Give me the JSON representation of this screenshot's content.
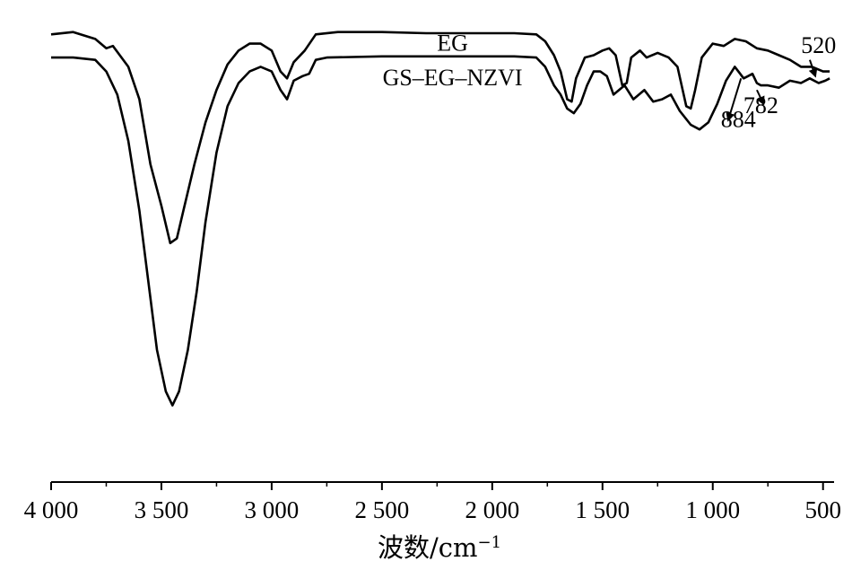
{
  "chart_data": {
    "type": "line",
    "title": "",
    "xlabel": "波数/cm",
    "xlabel_superscript": "−1",
    "ylabel": "",
    "xlim": [
      4000,
      450
    ],
    "x_reversed": true,
    "grid": false,
    "xticks": [
      {
        "value": 4000,
        "label": "4 000"
      },
      {
        "value": 3500,
        "label": "3 500"
      },
      {
        "value": 3000,
        "label": "3 000"
      },
      {
        "value": 2500,
        "label": "2 500"
      },
      {
        "value": 2000,
        "label": "2 000"
      },
      {
        "value": 1500,
        "label": "1 500"
      },
      {
        "value": 1000,
        "label": "1 000"
      },
      {
        "value": 500,
        "label": "500"
      }
    ],
    "series": [
      {
        "name": "EG",
        "color": "#000000",
        "points": [
          [
            4000,
            96
          ],
          [
            3900,
            97
          ],
          [
            3800,
            94
          ],
          [
            3750,
            90
          ],
          [
            3720,
            91
          ],
          [
            3650,
            82
          ],
          [
            3600,
            68
          ],
          [
            3550,
            40
          ],
          [
            3500,
            22
          ],
          [
            3460,
            6
          ],
          [
            3430,
            8
          ],
          [
            3400,
            20
          ],
          [
            3350,
            40
          ],
          [
            3300,
            58
          ],
          [
            3250,
            72
          ],
          [
            3200,
            83
          ],
          [
            3150,
            89
          ],
          [
            3100,
            92
          ],
          [
            3050,
            92
          ],
          [
            3000,
            89
          ],
          [
            2960,
            80
          ],
          [
            2930,
            77
          ],
          [
            2900,
            84
          ],
          [
            2850,
            89
          ],
          [
            2800,
            96
          ],
          [
            2700,
            97
          ],
          [
            2500,
            97
          ],
          [
            2300,
            96.5
          ],
          [
            2100,
            96.5
          ],
          [
            1900,
            96.5
          ],
          [
            1800,
            96
          ],
          [
            1760,
            93
          ],
          [
            1720,
            87
          ],
          [
            1690,
            80
          ],
          [
            1660,
            68
          ],
          [
            1640,
            67
          ],
          [
            1620,
            77
          ],
          [
            1580,
            86
          ],
          [
            1540,
            87
          ],
          [
            1500,
            89
          ],
          [
            1470,
            90
          ],
          [
            1440,
            87
          ],
          [
            1410,
            74
          ],
          [
            1390,
            75
          ],
          [
            1370,
            86
          ],
          [
            1330,
            89
          ],
          [
            1300,
            86
          ],
          [
            1250,
            88
          ],
          [
            1200,
            86
          ],
          [
            1160,
            82
          ],
          [
            1120,
            65
          ],
          [
            1100,
            64
          ],
          [
            1080,
            72
          ],
          [
            1050,
            86
          ],
          [
            1000,
            92
          ],
          [
            950,
            91
          ],
          [
            900,
            94
          ],
          [
            850,
            93
          ],
          [
            800,
            90
          ],
          [
            750,
            89
          ],
          [
            700,
            87
          ],
          [
            650,
            85
          ],
          [
            600,
            82
          ],
          [
            550,
            82
          ],
          [
            500,
            80
          ],
          [
            470,
            80
          ]
        ]
      },
      {
        "name": "GS–EG–NZVI",
        "color": "#000000",
        "points": [
          [
            4000,
            86
          ],
          [
            3900,
            86
          ],
          [
            3800,
            85
          ],
          [
            3750,
            80
          ],
          [
            3700,
            70
          ],
          [
            3650,
            50
          ],
          [
            3600,
            20
          ],
          [
            3560,
            -10
          ],
          [
            3520,
            -40
          ],
          [
            3480,
            -58
          ],
          [
            3450,
            -64
          ],
          [
            3420,
            -58
          ],
          [
            3380,
            -40
          ],
          [
            3340,
            -15
          ],
          [
            3300,
            15
          ],
          [
            3250,
            45
          ],
          [
            3200,
            65
          ],
          [
            3150,
            75
          ],
          [
            3100,
            80
          ],
          [
            3050,
            82
          ],
          [
            3000,
            80
          ],
          [
            2960,
            72
          ],
          [
            2930,
            68
          ],
          [
            2900,
            76
          ],
          [
            2860,
            78
          ],
          [
            2830,
            79
          ],
          [
            2800,
            85
          ],
          [
            2750,
            86
          ],
          [
            2500,
            86.5
          ],
          [
            2200,
            86.5
          ],
          [
            1900,
            86.5
          ],
          [
            1800,
            86
          ],
          [
            1760,
            82
          ],
          [
            1720,
            74
          ],
          [
            1690,
            70
          ],
          [
            1660,
            64
          ],
          [
            1630,
            62
          ],
          [
            1600,
            66
          ],
          [
            1570,
            74
          ],
          [
            1540,
            80
          ],
          [
            1510,
            80
          ],
          [
            1480,
            78
          ],
          [
            1450,
            70
          ],
          [
            1400,
            74
          ],
          [
            1360,
            68
          ],
          [
            1310,
            72
          ],
          [
            1270,
            67
          ],
          [
            1230,
            68
          ],
          [
            1190,
            70
          ],
          [
            1150,
            63
          ],
          [
            1100,
            57
          ],
          [
            1060,
            55
          ],
          [
            1020,
            58
          ],
          [
            980,
            66
          ],
          [
            940,
            76
          ],
          [
            900,
            82
          ],
          [
            884,
            80
          ],
          [
            860,
            77
          ],
          [
            840,
            78
          ],
          [
            820,
            79
          ],
          [
            800,
            75
          ],
          [
            782,
            74
          ],
          [
            750,
            74
          ],
          [
            700,
            73
          ],
          [
            650,
            76
          ],
          [
            600,
            75
          ],
          [
            560,
            77
          ],
          [
            520,
            75
          ],
          [
            490,
            76
          ],
          [
            470,
            77
          ]
        ]
      }
    ],
    "series_labels": [
      {
        "text": "EG",
        "x": 2180,
        "y": 89
      },
      {
        "text": "GS–EG–NZVI",
        "x": 2180,
        "y": 74
      }
    ],
    "annotations": [
      {
        "text": "520",
        "x": 520,
        "y": 88
      },
      {
        "text": "884",
        "x": 884,
        "y": 56
      },
      {
        "text": "782",
        "x": 782,
        "y": 62
      }
    ],
    "arrows": [
      {
        "label": "520",
        "from": [
          560,
          85
        ],
        "to": [
          535,
          78
        ]
      },
      {
        "label": "884",
        "from": [
          872,
          77
        ],
        "to": [
          930,
          59
        ]
      },
      {
        "label": "782",
        "from": [
          800,
          72
        ],
        "to": [
          770,
          66
        ]
      }
    ],
    "ylim": [
      -75,
      105
    ]
  }
}
